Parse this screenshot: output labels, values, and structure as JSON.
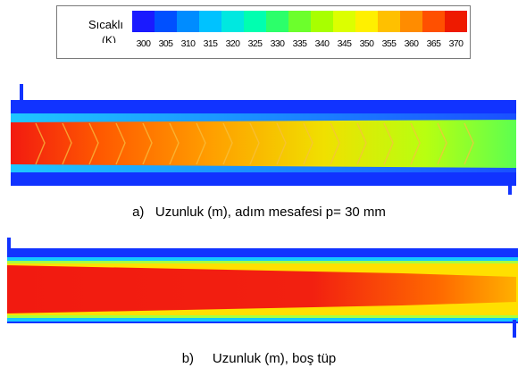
{
  "legend": {
    "title": "Sıcaklı",
    "unit": "(K)",
    "ticks": [
      "300",
      "305",
      "310",
      "315",
      "320",
      "325",
      "330",
      "335",
      "340",
      "345",
      "350",
      "355",
      "360",
      "365",
      "370"
    ],
    "colors": [
      "#1a1aff",
      "#0050ff",
      "#008cff",
      "#00c2ff",
      "#00e8e0",
      "#00ffb0",
      "#2cff6a",
      "#6cff2c",
      "#a8ff00",
      "#dcff00",
      "#fff000",
      "#ffc000",
      "#ff8c00",
      "#ff5000",
      "#ee1a00"
    ]
  },
  "captions": {
    "a": "a)   Uzunluk (m), adım mesafesi p= 30 mm",
    "b": "b)     Uzunluk (m), boş tüp"
  },
  "colors": {
    "wall": "#1133ff",
    "annulus": "#14c8ff",
    "hot": "#f21a10"
  }
}
